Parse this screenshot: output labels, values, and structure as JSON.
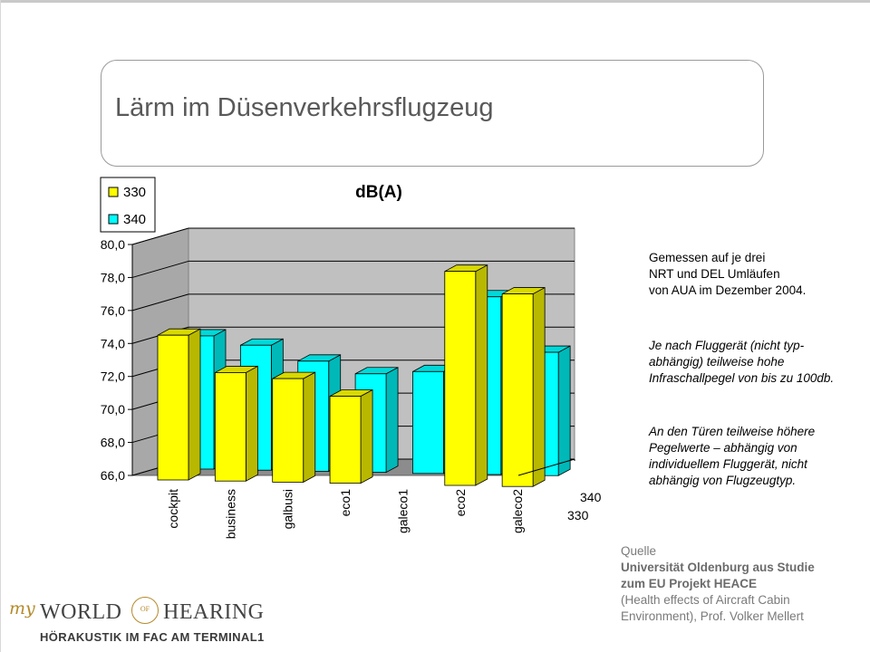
{
  "slide": {
    "title": "Lärm im Düsenverkehrsflugzeug"
  },
  "notes": {
    "measurement": [
      "Gemessen auf je drei",
      "NRT und DEL Umläufen",
      "von AUA im Dezember 2004."
    ],
    "infrasound": [
      "Je nach Fluggerät (nicht typ-",
      "abhängig) teilweise hohe",
      "Infraschallpegel von bis zu 100db."
    ],
    "doors": [
      "An den Türen teilweise höhere",
      "Pegelwerte – abhängig von",
      "individuellem Fluggerät, nicht",
      "abhängig von Flugzeugtyp."
    ]
  },
  "source": {
    "label": "Quelle",
    "bold_lines": [
      "Universität Oldenburg aus Studie",
      "zum EU Projekt HEACE"
    ],
    "lines": [
      "(Health effects of Aircraft Cabin",
      " Environment), Prof. Volker Mellert"
    ]
  },
  "logo": {
    "my": "my",
    "world": "WORLD",
    "of": "OF",
    "hearing": "HEARING",
    "subtitle": "HÖRAKUSTIK IM FAC AM TERMINAL1"
  },
  "chart_data": {
    "type": "bar",
    "title": "dB(A)",
    "categories": [
      "cockpit",
      "business",
      "galbusi",
      "eco1",
      "galeco1",
      "eco2",
      "galeco2"
    ],
    "series": [
      {
        "name": "330",
        "color": "#ffff00",
        "values": [
          74.5,
          72.3,
          72.0,
          71.0,
          null,
          78.7,
          77.4
        ]
      },
      {
        "name": "340",
        "color": "#00ffff",
        "values": [
          73.8,
          73.3,
          72.4,
          71.7,
          71.9,
          76.5,
          73.2
        ]
      }
    ],
    "ylim": [
      66.0,
      80.0
    ],
    "yticks": [
      "66,0",
      "68,0",
      "70,0",
      "72,0",
      "74,0",
      "76,0",
      "78,0",
      "80,0"
    ],
    "depth_labels": [
      "340",
      "330"
    ],
    "legend_position": "top-left",
    "grid": true
  }
}
